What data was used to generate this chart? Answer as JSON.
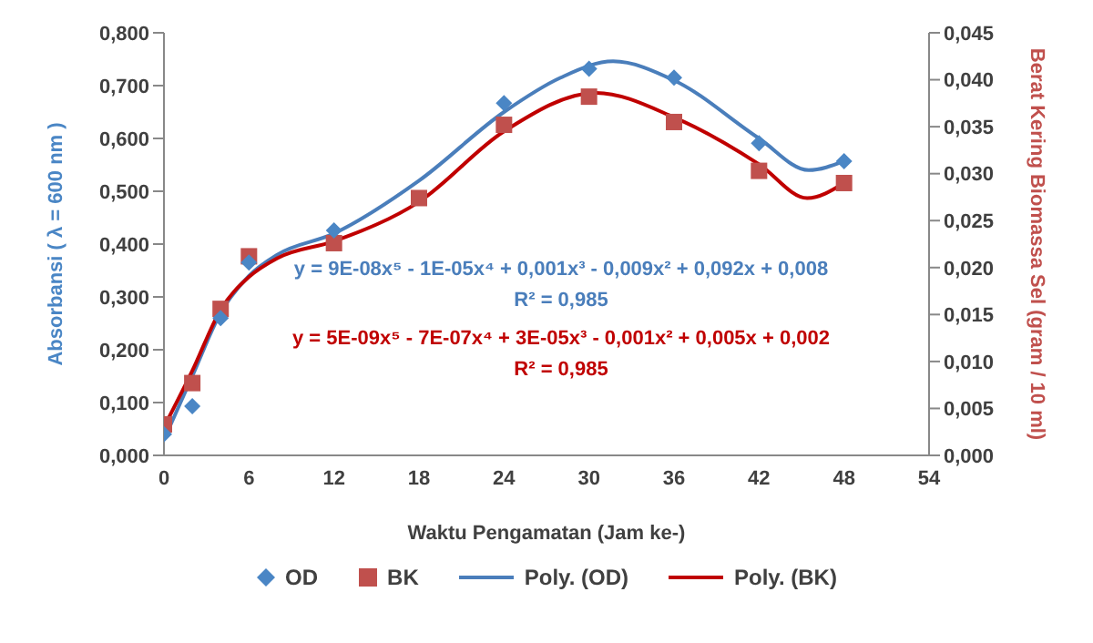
{
  "chart_data": {
    "type": "scatter",
    "xlabel": "Waktu Pengamatan (Jam ke-)",
    "ylabel": "Absorbansi ( λ = 600 nm )",
    "y2label": "Berat Kering Biomassa Sel (gram / 10 ml)",
    "xlim": [
      0,
      54
    ],
    "xticks": [
      0,
      6,
      12,
      18,
      24,
      30,
      36,
      42,
      48,
      54
    ],
    "ylim": [
      0,
      0.8
    ],
    "yticks": [
      {
        "value": 0,
        "label": "0,000"
      },
      {
        "value": 0.1,
        "label": "0,100"
      },
      {
        "value": 0.2,
        "label": "0,200"
      },
      {
        "value": 0.3,
        "label": "0,300"
      },
      {
        "value": 0.4,
        "label": "0,400"
      },
      {
        "value": 0.5,
        "label": "0,500"
      },
      {
        "value": 0.6,
        "label": "0,600"
      },
      {
        "value": 0.7,
        "label": "0,700"
      },
      {
        "value": 0.8,
        "label": "0,800"
      }
    ],
    "y2lim": [
      0,
      0.045
    ],
    "y2ticks": [
      {
        "value": 0,
        "label": "0,000"
      },
      {
        "value": 0.005,
        "label": "0,005"
      },
      {
        "value": 0.01,
        "label": "0,010"
      },
      {
        "value": 0.015,
        "label": "0,015"
      },
      {
        "value": 0.02,
        "label": "0,020"
      },
      {
        "value": 0.025,
        "label": "0,025"
      },
      {
        "value": 0.03,
        "label": "0,030"
      },
      {
        "value": 0.035,
        "label": "0,035"
      },
      {
        "value": 0.04,
        "label": "0,040"
      },
      {
        "value": 0.045,
        "label": "0,045"
      }
    ],
    "series": [
      {
        "name": "OD",
        "marker": "diamond",
        "color": "#4a86c5",
        "x": [
          0,
          2,
          4,
          6,
          12,
          24,
          30,
          36,
          42,
          48
        ],
        "values": [
          0.04,
          0.093,
          0.26,
          0.365,
          0.426,
          0.667,
          0.732,
          0.715,
          0.591,
          0.557
        ]
      },
      {
        "name": "BK",
        "marker": "square",
        "color": "#c0504d",
        "axis": "y2",
        "x": [
          0,
          2,
          4,
          6,
          12,
          18,
          24,
          30,
          36,
          42,
          48
        ],
        "values": [
          0.0033,
          0.0077,
          0.0156,
          0.0212,
          0.0226,
          0.0274,
          0.0352,
          0.0382,
          0.0355,
          0.0303,
          0.029
        ]
      },
      {
        "name": "Poly. (OD)",
        "type": "line",
        "marker": "none",
        "color": "#4a7ebb",
        "x": [
          0,
          2,
          4,
          6,
          8,
          12,
          18,
          24,
          28,
          31.7,
          36,
          42,
          45.5,
          48
        ],
        "values": [
          0.03,
          0.15,
          0.27,
          0.34,
          0.38,
          0.42,
          0.52,
          0.65,
          0.715,
          0.746,
          0.71,
          0.6,
          0.54,
          0.557
        ]
      },
      {
        "name": "Poly. (BK)",
        "type": "line",
        "marker": "none",
        "color": "#c00000",
        "axis": "y2",
        "x": [
          0,
          2,
          4,
          6,
          8,
          12,
          18,
          24,
          30.5,
          36,
          42,
          45.4,
          48
        ],
        "values": [
          0.003,
          0.009,
          0.0155,
          0.019,
          0.021,
          0.0228,
          0.027,
          0.0345,
          0.0386,
          0.036,
          0.031,
          0.0274,
          0.029
        ]
      }
    ],
    "annotations": [
      "y = 9E-08x⁵ - 1E-05x⁴ + 0,001x³ - 0,009x² + 0,092x + 0,008",
      "R² = 0,985",
      "y = 5E-09x⁵ - 7E-07x⁴ + 3E-05x³ - 0,001x² + 0,005x + 0,002",
      "R² = 0,985"
    ],
    "grid": false,
    "legend": "bottom"
  }
}
